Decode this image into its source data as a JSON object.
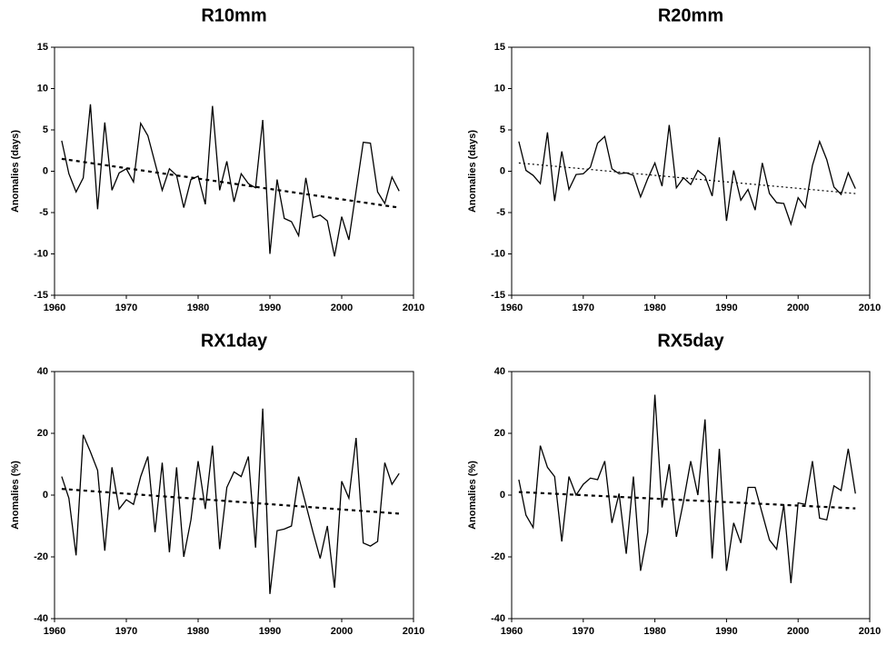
{
  "chart_data": [
    {
      "type": "line",
      "title": "R10mm",
      "y_label": "Anomalies (days)",
      "x": [
        1961,
        1962,
        1963,
        1964,
        1965,
        1966,
        1967,
        1968,
        1969,
        1970,
        1971,
        1972,
        1973,
        1974,
        1975,
        1976,
        1977,
        1978,
        1979,
        1980,
        1981,
        1982,
        1983,
        1984,
        1985,
        1986,
        1987,
        1988,
        1989,
        1990,
        1991,
        1992,
        1993,
        1994,
        1995,
        1996,
        1997,
        1998,
        1999,
        2000,
        2001,
        2002,
        2003,
        2004,
        2005,
        2006,
        2007,
        2008
      ],
      "series": [
        {
          "color": "#000000",
          "values": [
            3.7,
            -0.3,
            -2.5,
            -0.8,
            8.1,
            -4.6,
            5.9,
            -2.3,
            -0.2,
            0.3,
            -1.3,
            5.8,
            4.3,
            1.0,
            -2.3,
            0.3,
            -0.5,
            -4.4,
            -1.0,
            -0.6,
            -4.0,
            7.9,
            -2.3,
            1.2,
            -3.7,
            -0.3,
            -1.5,
            -2.0,
            6.2,
            -10.0,
            -1.0,
            -5.7,
            -6.1,
            -7.8,
            -0.8,
            -5.6,
            -5.3,
            -6.0,
            -10.3,
            -5.5,
            -8.3,
            -2.4,
            3.5,
            3.4,
            -2.5,
            -3.9,
            -0.7,
            -2.4
          ]
        }
      ],
      "trend": {
        "x": [
          1961,
          2008
        ],
        "values": [
          1.5,
          -4.4
        ],
        "color": "#000000",
        "dash": "4 4",
        "width": 2.2
      },
      "xlim": [
        1960,
        2010
      ],
      "xticks": [
        1960,
        1970,
        1980,
        1990,
        2000,
        2010
      ],
      "ylim": [
        -15,
        15
      ],
      "yticks": [
        -15,
        -10,
        -5,
        0,
        5,
        10,
        15
      ]
    },
    {
      "type": "line",
      "title": "R20mm",
      "y_label": "Anomalies (days)",
      "x": [
        1961,
        1962,
        1963,
        1964,
        1965,
        1966,
        1967,
        1968,
        1969,
        1970,
        1971,
        1972,
        1973,
        1974,
        1975,
        1976,
        1977,
        1978,
        1979,
        1980,
        1981,
        1982,
        1983,
        1984,
        1985,
        1986,
        1987,
        1988,
        1989,
        1990,
        1991,
        1992,
        1993,
        1994,
        1995,
        1996,
        1997,
        1998,
        1999,
        2000,
        2001,
        2002,
        2003,
        2004,
        2005,
        2006,
        2007,
        2008
      ],
      "series": [
        {
          "color": "#000000",
          "values": [
            3.6,
            0.1,
            -0.5,
            -1.5,
            4.7,
            -3.6,
            2.4,
            -2.2,
            -0.4,
            -0.3,
            0.5,
            3.4,
            4.2,
            0.3,
            -0.3,
            -0.2,
            -0.5,
            -3.1,
            -0.9,
            1.0,
            -1.8,
            5.6,
            -2.0,
            -0.8,
            -1.6,
            0.1,
            -0.6,
            -3.0,
            4.1,
            -6.0,
            0.1,
            -3.5,
            -2.2,
            -4.7,
            1.0,
            -2.7,
            -3.8,
            -3.9,
            -6.4,
            -3.2,
            -4.4,
            0.7,
            3.6,
            1.4,
            -1.9,
            -2.8,
            -0.2,
            -2.1
          ]
        }
      ],
      "trend": {
        "x": [
          1961,
          2008
        ],
        "values": [
          1.0,
          -2.7
        ],
        "color": "#000000",
        "dash": "2 3",
        "width": 1.2
      },
      "xlim": [
        1960,
        2010
      ],
      "xticks": [
        1960,
        1970,
        1980,
        1990,
        2000,
        2010
      ],
      "ylim": [
        -15,
        15
      ],
      "yticks": [
        -15,
        -10,
        -5,
        0,
        5,
        10,
        15
      ]
    },
    {
      "type": "line",
      "title": "RX1day",
      "y_label": "Anomalies (%)",
      "x": [
        1961,
        1962,
        1963,
        1964,
        1965,
        1966,
        1967,
        1968,
        1969,
        1970,
        1971,
        1972,
        1973,
        1974,
        1975,
        1976,
        1977,
        1978,
        1979,
        1980,
        1981,
        1982,
        1983,
        1984,
        1985,
        1986,
        1987,
        1988,
        1989,
        1990,
        1991,
        1992,
        1993,
        1994,
        1995,
        1996,
        1997,
        1998,
        1999,
        2000,
        2001,
        2002,
        2003,
        2004,
        2005,
        2006,
        2007,
        2008
      ],
      "series": [
        {
          "color": "#000000",
          "values": [
            6,
            -1,
            -19.5,
            19.5,
            14,
            8,
            -18,
            9,
            -4.5,
            -1.5,
            -3,
            6,
            12.5,
            -12,
            10.5,
            -18.5,
            9,
            -20,
            -8,
            11,
            -4.5,
            16,
            -17.5,
            2.5,
            7.5,
            6,
            12.5,
            -17,
            28,
            -32,
            -11.5,
            -11,
            -10,
            6,
            -3,
            -12,
            -20.5,
            -10,
            -30,
            4.5,
            -1,
            18.5,
            -15.5,
            -16.5,
            -15,
            10.5,
            3.5,
            7
          ]
        }
      ],
      "trend": {
        "x": [
          1961,
          2008
        ],
        "values": [
          2,
          -6
        ],
        "color": "#000000",
        "dash": "4 4",
        "width": 2.2
      },
      "xlim": [
        1960,
        2010
      ],
      "xticks": [
        1960,
        1970,
        1980,
        1990,
        2000,
        2010
      ],
      "ylim": [
        -40,
        40
      ],
      "yticks": [
        -40,
        -20,
        0,
        20,
        40
      ]
    },
    {
      "type": "line",
      "title": "RX5day",
      "y_label": "Anomalies (%)",
      "x": [
        1961,
        1962,
        1963,
        1964,
        1965,
        1966,
        1967,
        1968,
        1969,
        1970,
        1971,
        1972,
        1973,
        1974,
        1975,
        1976,
        1977,
        1978,
        1979,
        1980,
        1981,
        1982,
        1983,
        1984,
        1985,
        1986,
        1987,
        1988,
        1989,
        1990,
        1991,
        1992,
        1993,
        1994,
        1995,
        1996,
        1997,
        1998,
        1999,
        2000,
        2001,
        2002,
        2003,
        2004,
        2005,
        2006,
        2007,
        2008
      ],
      "series": [
        {
          "color": "#000000",
          "values": [
            5,
            -6.5,
            -10.5,
            16,
            9,
            6,
            -15,
            6,
            0,
            3.5,
            5.5,
            5,
            11,
            -9,
            0.5,
            -19,
            6,
            -24.5,
            -12,
            32.5,
            -4,
            10,
            -13.5,
            -2,
            11,
            0,
            24.5,
            -20.5,
            15,
            -24.5,
            -9,
            -15.5,
            2.5,
            2.5,
            -6,
            -14.5,
            -17.5,
            -3,
            -28.5,
            -2.5,
            -3,
            11,
            -7.5,
            -8,
            3,
            1.5,
            15,
            0.5
          ]
        }
      ],
      "trend": {
        "x": [
          1961,
          2008
        ],
        "values": [
          1,
          -4.3
        ],
        "color": "#000000",
        "dash": "4 4",
        "width": 2.2
      },
      "xlim": [
        1960,
        2010
      ],
      "xticks": [
        1960,
        1970,
        1980,
        1990,
        2000,
        2010
      ],
      "ylim": [
        -40,
        40
      ],
      "yticks": [
        -40,
        -20,
        0,
        20,
        40
      ]
    }
  ]
}
